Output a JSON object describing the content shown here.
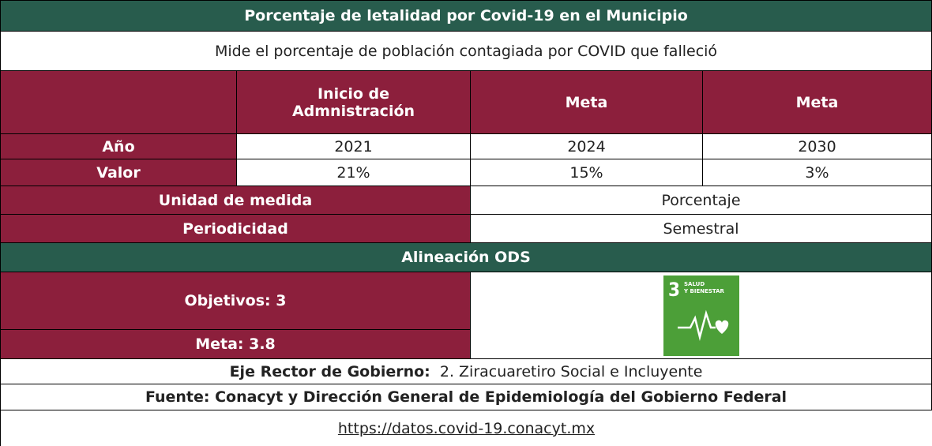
{
  "title": "Porcentaje de letalidad por Covid-19 en el Municipio",
  "subtitle": "Mide el porcentaje de población contagiada por COVID que falleció",
  "table": {
    "header": [
      "Inicio de Admnistración",
      "Meta",
      "Meta"
    ],
    "rows": [
      {
        "label": "Año",
        "values": [
          "2021",
          "2024",
          "2030"
        ]
      },
      {
        "label": "Valor",
        "values": [
          "21%",
          "15%",
          "3%"
        ]
      }
    ]
  },
  "unit": {
    "label": "Unidad de medida",
    "value": "Porcentaje"
  },
  "periodicity": {
    "label": "Periodicidad",
    "value": "Semestral"
  },
  "ods": {
    "title": "Alineación ODS",
    "objective": "Objetivos: 3",
    "goal": "Meta: 3.8",
    "icon": {
      "number": "3",
      "line1": "SALUD",
      "line2": "Y BIENESTAR"
    }
  },
  "axis": {
    "label": "Eje Rector de Gobierno:",
    "value": "2. Ziracuaretiro Social e Incluyente"
  },
  "source": "Fuente: Conacyt y Dirección General de Epidemiología del Gobierno Federal",
  "url": "https://datos.covid-19.conacyt.mx"
}
